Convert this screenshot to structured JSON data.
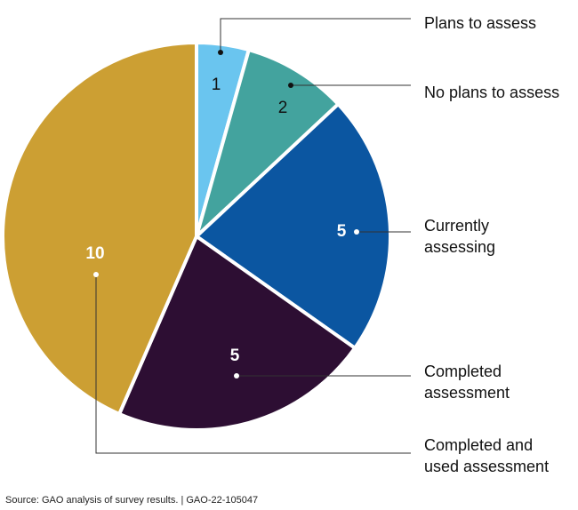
{
  "chart_data": {
    "type": "pie",
    "slices": [
      {
        "label": "Plans to assess",
        "label_lines": [
          "Plans to assess"
        ],
        "value": 1,
        "color": "#6ac5ef",
        "value_color": "#111111",
        "bold": false
      },
      {
        "label": "No plans to assess",
        "label_lines": [
          "No plans to assess"
        ],
        "value": 2,
        "color": "#43a39e",
        "value_color": "#111111",
        "bold": false
      },
      {
        "label": "Currently assessing",
        "label_lines": [
          "Currently",
          "assessing"
        ],
        "value": 5,
        "color": "#0b56a1",
        "value_color": "#ffffff",
        "bold": true
      },
      {
        "label": "Completed assessment",
        "label_lines": [
          "Completed",
          "assessment"
        ],
        "value": 5,
        "color": "#2d0e33",
        "value_color": "#ffffff",
        "bold": true
      },
      {
        "label": "Completed and used assessment",
        "label_lines": [
          "Completed and",
          "used assessment"
        ],
        "value": 10,
        "color": "#cc9f33",
        "value_color": "#ffffff",
        "bold": true
      }
    ],
    "start": "12 o'clock",
    "direction": "clockwise",
    "legend": "right, with leader lines"
  },
  "source": "Source: GAO analysis of survey results.  |  GAO-22-105047"
}
